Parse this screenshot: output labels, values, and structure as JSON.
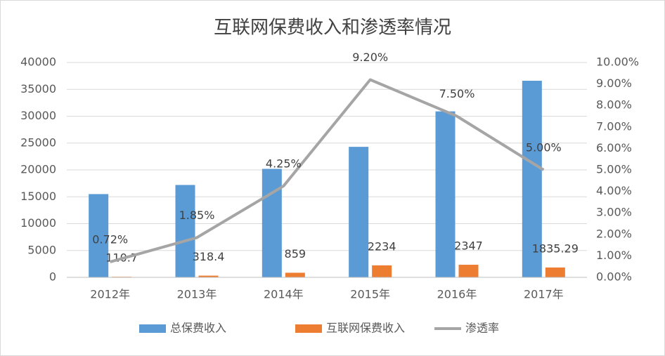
{
  "chart_data": {
    "type": "bar",
    "title": "互联网保费收入和渗透率情况",
    "categories": [
      "2012年",
      "2013年",
      "2014年",
      "2015年",
      "2016年",
      "2017年"
    ],
    "series": [
      {
        "name": "总保费收入",
        "color": "#5b9bd5",
        "values": [
          15500,
          17200,
          20200,
          24300,
          30900,
          36600
        ]
      },
      {
        "name": "互联网保费收入",
        "color": "#ed7d31",
        "values": [
          110.7,
          318.4,
          859,
          2234,
          2347,
          1835.29
        ],
        "show_labels": true
      },
      {
        "name": "渗透率",
        "color": "#a5a5a5",
        "type": "line",
        "axis": "y2",
        "values": [
          0.72,
          1.85,
          4.25,
          9.2,
          7.5,
          5.0
        ],
        "value_labels": [
          "0.72%",
          "1.85%",
          "4.25%",
          "9.20%",
          "7.50%",
          "5.00%"
        ]
      }
    ],
    "ylim": [
      0,
      40000
    ],
    "yticks": [
      0,
      5000,
      10000,
      15000,
      20000,
      25000,
      30000,
      35000,
      40000
    ],
    "y2lim": [
      0,
      10
    ],
    "y2ticks": [
      {
        "value": 0,
        "label": "0.00%"
      },
      {
        "value": 1,
        "label": "1.00%"
      },
      {
        "value": 2,
        "label": "2.00%"
      },
      {
        "value": 3,
        "label": "3.00%"
      },
      {
        "value": 4,
        "label": "4.00%"
      },
      {
        "value": 5,
        "label": "5.00%"
      },
      {
        "value": 6,
        "label": "6.00%"
      },
      {
        "value": 7,
        "label": "7.00%"
      },
      {
        "value": 8,
        "label": "8.00%"
      },
      {
        "value": 9,
        "label": "9.00%"
      },
      {
        "value": 10,
        "label": "10.00%"
      }
    ],
    "grid": true
  }
}
